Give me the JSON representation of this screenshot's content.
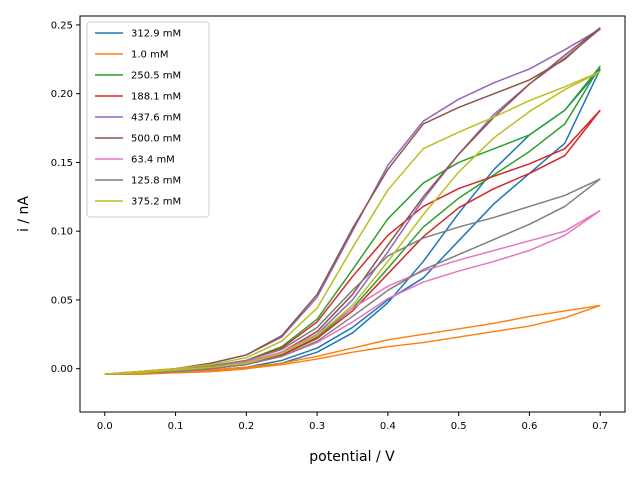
{
  "chart_data": {
    "type": "line",
    "title": "",
    "xlabel": "potential / V",
    "ylabel": "i / nA",
    "xlim": [
      -0.035,
      0.735
    ],
    "ylim": [
      -0.0315,
      0.2565
    ],
    "xticks": [
      0.0,
      0.1,
      0.2,
      0.3,
      0.4,
      0.5,
      0.6,
      0.7
    ],
    "xtick_labels": [
      "0.0",
      "0.1",
      "0.2",
      "0.3",
      "0.4",
      "0.5",
      "0.6",
      "0.7"
    ],
    "yticks": [
      0.0,
      0.05,
      0.1,
      0.15,
      0.2,
      0.25
    ],
    "ytick_labels": [
      "0.00",
      "0.05",
      "0.10",
      "0.15",
      "0.20",
      "0.25"
    ],
    "grid": false,
    "legend_position": "top-left",
    "x": [
      0.0,
      0.05,
      0.1,
      0.15,
      0.2,
      0.25,
      0.3,
      0.35,
      0.4,
      0.45,
      0.5,
      0.55,
      0.6,
      0.65,
      0.7
    ],
    "series": [
      {
        "name": "312.9 mM",
        "color": "#1f77b4",
        "forward": [
          -0.004,
          -0.003,
          -0.003,
          -0.002,
          0.0,
          0.004,
          0.012,
          0.026,
          0.048,
          0.078,
          0.113,
          0.145,
          0.17,
          0.188,
          0.218
        ],
        "reverse": [
          -0.004,
          -0.003,
          -0.002,
          -0.001,
          0.001,
          0.006,
          0.015,
          0.03,
          0.05,
          0.066,
          0.093,
          0.12,
          0.142,
          0.164,
          0.218
        ]
      },
      {
        "name": "1.0 mM",
        "color": "#ff7f0e",
        "forward": [
          -0.004,
          -0.004,
          -0.003,
          -0.002,
          0.0,
          0.003,
          0.007,
          0.012,
          0.016,
          0.019,
          0.023,
          0.027,
          0.031,
          0.037,
          0.046
        ],
        "reverse": [
          -0.004,
          -0.003,
          -0.002,
          -0.001,
          0.001,
          0.004,
          0.009,
          0.015,
          0.021,
          0.025,
          0.029,
          0.033,
          0.038,
          0.042,
          0.046
        ]
      },
      {
        "name": "250.5 mM",
        "color": "#2ca02c",
        "forward": [
          -0.004,
          -0.003,
          -0.001,
          0.002,
          0.006,
          0.016,
          0.036,
          0.072,
          0.109,
          0.135,
          0.15,
          0.16,
          0.17,
          0.188,
          0.22
        ],
        "reverse": [
          -0.004,
          -0.003,
          -0.002,
          0.0,
          0.003,
          0.01,
          0.023,
          0.044,
          0.073,
          0.103,
          0.124,
          0.141,
          0.158,
          0.178,
          0.22
        ]
      },
      {
        "name": "188.1 mM",
        "color": "#d62728",
        "forward": [
          -0.004,
          -0.003,
          -0.001,
          0.002,
          0.006,
          0.015,
          0.034,
          0.067,
          0.097,
          0.118,
          0.131,
          0.14,
          0.149,
          0.16,
          0.188
        ],
        "reverse": [
          -0.004,
          -0.003,
          -0.002,
          0.0,
          0.003,
          0.01,
          0.022,
          0.042,
          0.069,
          0.096,
          0.117,
          0.131,
          0.142,
          0.155,
          0.188
        ]
      },
      {
        "name": "437.6 mM",
        "color": "#9467bd",
        "forward": [
          -0.004,
          -0.002,
          0.0,
          0.004,
          0.01,
          0.023,
          0.052,
          0.1,
          0.148,
          0.18,
          0.196,
          0.208,
          0.218,
          0.232,
          0.247
        ],
        "reverse": [
          -0.004,
          -0.003,
          -0.001,
          0.001,
          0.004,
          0.011,
          0.025,
          0.05,
          0.085,
          0.123,
          0.156,
          0.185,
          0.207,
          0.226,
          0.247
        ]
      },
      {
        "name": "500.0 mM",
        "color": "#8c564b",
        "forward": [
          -0.004,
          -0.002,
          0.0,
          0.004,
          0.01,
          0.024,
          0.054,
          0.102,
          0.145,
          0.178,
          0.19,
          0.2,
          0.21,
          0.225,
          0.248
        ],
        "reverse": [
          -0.004,
          -0.003,
          -0.001,
          0.001,
          0.005,
          0.012,
          0.027,
          0.054,
          0.09,
          0.125,
          0.156,
          0.183,
          0.207,
          0.228,
          0.248
        ]
      },
      {
        "name": "63.4 mM",
        "color": "#e377c2",
        "forward": [
          -0.004,
          -0.003,
          -0.001,
          0.002,
          0.005,
          0.012,
          0.025,
          0.044,
          0.06,
          0.071,
          0.079,
          0.086,
          0.093,
          0.1,
          0.115
        ],
        "reverse": [
          -0.004,
          -0.003,
          -0.002,
          0.0,
          0.003,
          0.009,
          0.019,
          0.034,
          0.051,
          0.063,
          0.071,
          0.078,
          0.086,
          0.097,
          0.115
        ]
      },
      {
        "name": "125.8 mM",
        "color": "#7f7f7f",
        "forward": [
          -0.004,
          -0.003,
          -0.001,
          0.002,
          0.006,
          0.014,
          0.03,
          0.057,
          0.082,
          0.095,
          0.103,
          0.11,
          0.118,
          0.126,
          0.138
        ],
        "reverse": [
          -0.004,
          -0.003,
          -0.002,
          0.0,
          0.003,
          0.009,
          0.02,
          0.038,
          0.057,
          0.072,
          0.083,
          0.094,
          0.105,
          0.118,
          0.138
        ]
      },
      {
        "name": "375.2 mM",
        "color": "#bcbd22",
        "forward": [
          -0.004,
          -0.002,
          0.0,
          0.003,
          0.008,
          0.02,
          0.044,
          0.088,
          0.13,
          0.16,
          0.172,
          0.183,
          0.195,
          0.205,
          0.216
        ],
        "reverse": [
          -0.004,
          -0.003,
          -0.001,
          0.001,
          0.004,
          0.011,
          0.024,
          0.046,
          0.078,
          0.112,
          0.143,
          0.168,
          0.187,
          0.203,
          0.216
        ]
      }
    ]
  }
}
